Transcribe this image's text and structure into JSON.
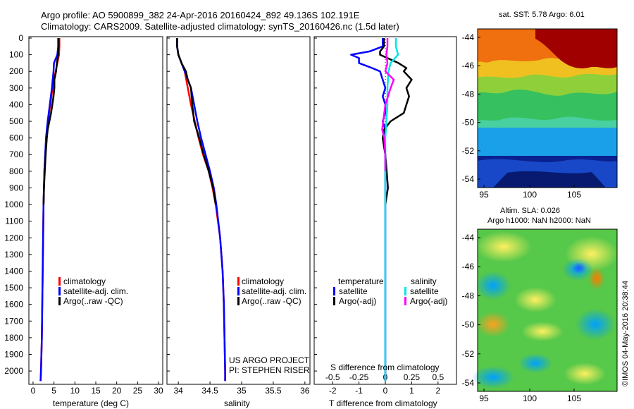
{
  "header": {
    "line1": "Argo profile: AO 5900899_382 24-Apr-2016 20160424_892 49.136S 102.191E",
    "line2": "Climatology: CARS2009. Satellite-adjusted climatology: synTS_20160426.nc (1.5d later)"
  },
  "depth_ticks": [
    "0",
    "100",
    "200",
    "300",
    "400",
    "500",
    "600",
    "700",
    "800",
    "900",
    "1000",
    "1100",
    "1200",
    "1300",
    "1400",
    "1500",
    "1600",
    "1700",
    "1800",
    "1900",
    "2000"
  ],
  "colors": {
    "climatology": "#ff0000",
    "satellite": "#0000ff",
    "argo": "#000000",
    "sat_salinity": "#00e5e5",
    "argo_salinity": "#ff00ff"
  },
  "panel_temp": {
    "xlabel": "temperature (deg C)",
    "xticks": [
      "0",
      "5",
      "10",
      "15",
      "20",
      "25",
      "30"
    ],
    "legend": [
      "climatology",
      "satellite-adj. clim.",
      "Argo(..raw -QC)"
    ]
  },
  "panel_sal": {
    "xlabel": "salinity",
    "xticks": [
      "34",
      "34.5",
      "35",
      "35.5",
      "36"
    ],
    "legend": [
      "climatology",
      "satellite-adj. clim.",
      "Argo(..raw -QC)"
    ],
    "project_line1": "US ARGO PROJECT",
    "project_line2": "PI: STEPHEN RISER"
  },
  "panel_diff": {
    "xlabel": "T difference from climatology",
    "xticks": [
      "-2",
      "-1",
      "0",
      "1",
      "2"
    ],
    "s_label": "S difference from climatology",
    "s_ticks": [
      "-0.5",
      "-0.25",
      "0",
      "0.25",
      "0.5"
    ],
    "legend_temp_head": "temperature",
    "legend_sal_head": "salinity",
    "legend_items": [
      "satellite",
      "Argo(-adj)",
      "satellite",
      "Argo(-adj)"
    ]
  },
  "map_sst": {
    "title": "sat. SST: 5.78 Argo: 6.01",
    "yticks": [
      "-44",
      "-46",
      "-48",
      "-50",
      "-52",
      "-54"
    ],
    "xticks": [
      "95",
      "100",
      "105"
    ]
  },
  "map_sla": {
    "title1": "Altim. SLA: 0.026",
    "title2": "Argo h1000: NaN h2000: NaN",
    "yticks": [
      "-44",
      "-46",
      "-48",
      "-50",
      "-52",
      "-54"
    ],
    "xticks": [
      "95",
      "100",
      "105"
    ]
  },
  "side_stamp": "©IMOS 04-May-2016 20:38:44",
  "chart_data": [
    {
      "type": "line",
      "title": "",
      "xlabel": "temperature (deg C)",
      "ylabel": "",
      "xlim": [
        -1,
        31
      ],
      "ylim": [
        2080,
        0
      ],
      "series": [
        {
          "name": "climatology",
          "depth": [
            0,
            50,
            100,
            150,
            200,
            250,
            300,
            400,
            500,
            600,
            700,
            800,
            900,
            1000,
            1200,
            1400,
            1600,
            1800,
            2000,
            2060
          ],
          "values": [
            6.3,
            6.3,
            6.2,
            5.8,
            5.4,
            5.0,
            4.7,
            4.1,
            3.6,
            3.2,
            2.9,
            2.7,
            2.6,
            2.5,
            2.4,
            2.3,
            2.2,
            2.1,
            1.9,
            1.8
          ]
        },
        {
          "name": "satellite-adj. clim.",
          "depth": [
            0,
            50,
            100,
            150,
            200,
            250,
            300,
            400,
            500,
            600,
            700,
            800,
            900,
            1000,
            1200,
            1400,
            1600,
            1800,
            2000,
            2060
          ],
          "values": [
            6.0,
            6.0,
            5.8,
            5.0,
            4.9,
            4.7,
            4.5,
            4.0,
            3.5,
            3.1,
            2.9,
            2.7,
            2.6,
            2.5,
            2.4,
            2.3,
            2.2,
            2.1,
            1.9,
            1.8
          ]
        },
        {
          "name": "Argo(..raw -QC)",
          "depth": [
            0,
            50,
            100,
            150,
            200,
            250,
            300,
            350,
            400,
            450,
            500,
            550,
            600,
            700,
            800,
            900,
            1000
          ],
          "values": [
            6.1,
            6.1,
            6.0,
            5.7,
            5.5,
            5.1,
            5.1,
            4.9,
            4.6,
            4.3,
            3.9,
            3.5,
            3.3,
            3.0,
            2.8,
            2.6,
            2.5
          ]
        }
      ]
    },
    {
      "type": "line",
      "title": "",
      "xlabel": "salinity",
      "ylabel": "",
      "xlim": [
        33.82,
        36.08
      ],
      "ylim": [
        2080,
        0
      ],
      "series": [
        {
          "name": "climatology",
          "depth": [
            0,
            50,
            100,
            150,
            200,
            300,
            400,
            500,
            600,
            700,
            800,
            900,
            1000,
            1200,
            1400,
            1600,
            1800,
            2000,
            2060
          ],
          "values": [
            33.98,
            33.98,
            34.0,
            34.05,
            34.1,
            34.15,
            34.2,
            34.26,
            34.32,
            34.39,
            34.48,
            34.54,
            34.59,
            34.66,
            34.7,
            34.72,
            34.73,
            34.74,
            34.74
          ]
        },
        {
          "name": "satellite-adj. clim.",
          "depth": [
            0,
            50,
            100,
            150,
            200,
            300,
            400,
            500,
            600,
            700,
            800,
            900,
            1000,
            1200,
            1400,
            1600,
            1800,
            2000,
            2060
          ],
          "values": [
            33.98,
            33.98,
            34.0,
            34.05,
            34.1,
            34.2,
            34.25,
            34.3,
            34.36,
            34.43,
            34.5,
            34.56,
            34.6,
            34.66,
            34.7,
            34.72,
            34.73,
            34.74,
            34.74
          ]
        },
        {
          "name": "Argo(..raw -QC)",
          "depth": [
            0,
            50,
            100,
            150,
            200,
            250,
            300,
            400,
            500,
            600,
            700,
            800,
            900,
            1000
          ],
          "values": [
            33.98,
            33.98,
            34.0,
            34.05,
            34.12,
            34.15,
            34.2,
            34.22,
            34.25,
            34.33,
            34.4,
            34.48,
            34.55,
            34.59
          ]
        }
      ]
    },
    {
      "type": "line",
      "title": "",
      "xlabel": "T difference from climatology",
      "ylabel": "",
      "xlim": [
        -2.7,
        2.7
      ],
      "ylim": [
        2080,
        0
      ],
      "series": [
        {
          "name": "satellite",
          "depth": [
            0,
            50,
            80,
            100,
            120,
            150,
            180,
            200,
            250,
            300,
            350,
            400,
            450,
            500,
            550,
            600,
            700,
            800,
            900,
            1000,
            1200,
            1400,
            1600,
            1800,
            2000,
            2060
          ],
          "values": [
            -0.1,
            -0.1,
            -0.6,
            -1.3,
            -1.0,
            -1.0,
            -0.5,
            -0.2,
            -0.1,
            0.0,
            -0.1,
            0.0,
            0.0,
            -0.1,
            0.0,
            -0.1,
            0.0,
            0.0,
            0.0,
            0.0,
            0.0,
            0.0,
            0.0,
            0.0,
            0.0,
            0.0
          ]
        },
        {
          "name": "Argo(-adj)",
          "depth": [
            0,
            50,
            80,
            100,
            150,
            180,
            200,
            250,
            300,
            350,
            400,
            450,
            500,
            550,
            600,
            700,
            800,
            900,
            1000
          ],
          "values": [
            -0.05,
            -0.05,
            -0.2,
            -0.2,
            0.5,
            0.8,
            0.7,
            1.0,
            0.8,
            0.9,
            0.8,
            0.7,
            0.2,
            -0.05,
            -0.1,
            0.0,
            0.05,
            0.1,
            0.0
          ]
        }
      ]
    },
    {
      "type": "line",
      "title": "",
      "xlabel": "S difference from climatology",
      "ylabel": "",
      "xlim": [
        -0.675,
        0.675
      ],
      "ylim": [
        2080,
        0
      ],
      "series": [
        {
          "name": "satellite",
          "depth": [
            0,
            50,
            100,
            150,
            200,
            300,
            400,
            500,
            600,
            800,
            1000,
            1200,
            1400,
            1600,
            1800,
            2000,
            2060
          ],
          "values": [
            0.1,
            0.1,
            0.12,
            0.05,
            0.03,
            0.02,
            0.02,
            0.01,
            0.0,
            0.0,
            0.0,
            0.0,
            0.0,
            0.0,
            0.0,
            0.0,
            0.0
          ]
        },
        {
          "name": "Argo(-adj)",
          "depth": [
            0,
            50,
            100,
            150,
            200,
            250,
            300,
            400,
            500,
            550,
            600,
            700,
            800
          ],
          "values": [
            0.02,
            0.02,
            0.01,
            0.02,
            0.0,
            0.08,
            0.05,
            0.0,
            -0.02,
            -0.03,
            -0.01,
            0.0,
            0.0
          ]
        }
      ]
    }
  ]
}
